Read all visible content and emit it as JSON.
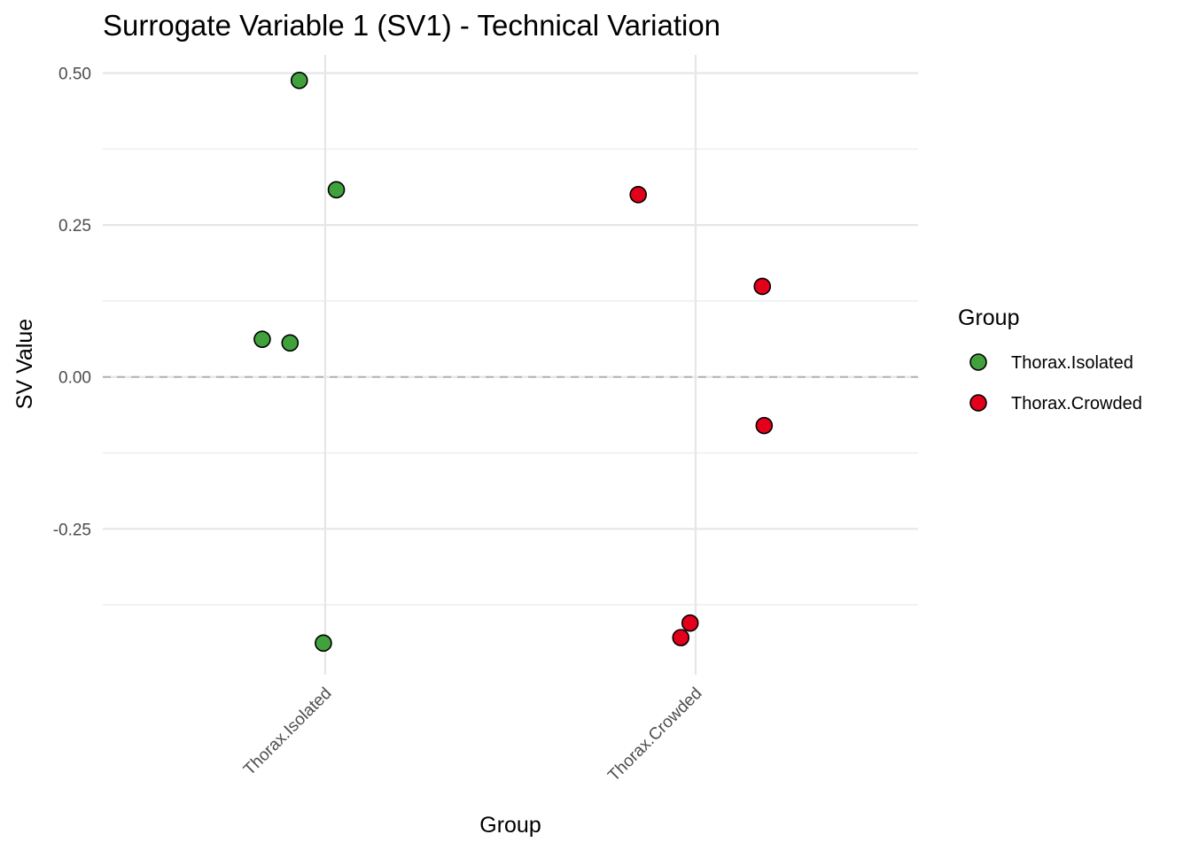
{
  "chart_data": {
    "type": "scatter",
    "title": "Surrogate Variable 1 (SV1) - Technical Variation",
    "xlabel": "Group",
    "ylabel": "SV Value",
    "categories": [
      "Thorax.Isolated",
      "Thorax.Crowded"
    ],
    "y_ticks": [
      "0.50",
      "0.25",
      "0.00",
      "-0.25"
    ],
    "ylim": [
      -0.49,
      0.53
    ],
    "reference_line": {
      "y": 0,
      "style": "dashed"
    },
    "grid": true,
    "legend": {
      "title": "Group",
      "position": "right"
    },
    "series": [
      {
        "name": "Thorax.Isolated",
        "color": "#41a13d",
        "points": [
          {
            "category": "Thorax.Isolated",
            "jitter": -0.07,
            "y": 0.488
          },
          {
            "category": "Thorax.Isolated",
            "jitter": 0.03,
            "y": 0.308
          },
          {
            "category": "Thorax.Isolated",
            "jitter": -0.17,
            "y": 0.062
          },
          {
            "category": "Thorax.Isolated",
            "jitter": -0.095,
            "y": 0.056
          },
          {
            "category": "Thorax.Isolated",
            "jitter": -0.005,
            "y": -0.438
          }
        ]
      },
      {
        "name": "Thorax.Crowded",
        "color": "#e2001a",
        "points": [
          {
            "category": "Thorax.Crowded",
            "jitter": -0.155,
            "y": 0.3
          },
          {
            "category": "Thorax.Crowded",
            "jitter": 0.18,
            "y": 0.149
          },
          {
            "category": "Thorax.Crowded",
            "jitter": 0.185,
            "y": -0.08
          },
          {
            "category": "Thorax.Crowded",
            "jitter": -0.015,
            "y": -0.405
          },
          {
            "category": "Thorax.Crowded",
            "jitter": -0.04,
            "y": -0.429
          }
        ]
      }
    ]
  }
}
